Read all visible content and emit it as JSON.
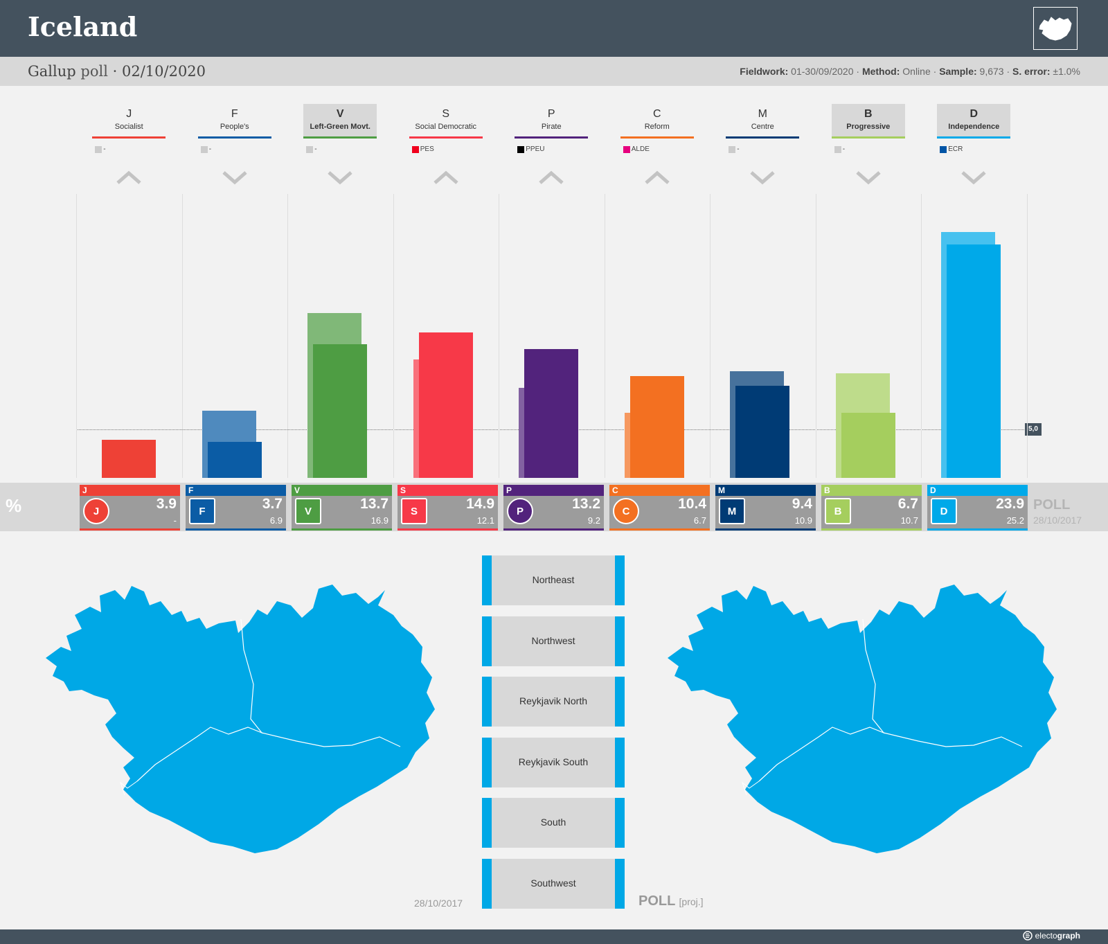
{
  "header": {
    "country": "Iceland",
    "pollster": "Gallup",
    "poll_word": "poll",
    "separator": "·",
    "date": "02/10/2020",
    "fieldwork_label": "Fieldwork:",
    "fieldwork_value": "01-30/09/2020",
    "method_label": "Method:",
    "method_value": "Online",
    "sample_label": "Sample:",
    "sample_value": "9,673",
    "error_label": "S. error:",
    "error_value": "±1.0%",
    "dot": "·"
  },
  "strip": {
    "percent_symbol": "%",
    "poll_label": "POLL",
    "previous_date": "28/10/2017"
  },
  "chart_data": {
    "type": "bar",
    "title": "Iceland — Gallup poll 02/10/2020",
    "categories": [
      "J",
      "F",
      "V",
      "S",
      "P",
      "C",
      "M",
      "B",
      "D"
    ],
    "series": [
      {
        "name": "Election 28/10/2017",
        "values": [
          null,
          6.9,
          16.9,
          12.1,
          9.2,
          6.7,
          10.9,
          10.7,
          25.2
        ]
      },
      {
        "name": "Poll 02/10/2020",
        "values": [
          3.9,
          3.7,
          13.7,
          14.9,
          13.2,
          10.4,
          9.4,
          6.7,
          23.9
        ]
      }
    ],
    "threshold": 5.0,
    "threshold_label": "5,0",
    "ylim": [
      0,
      26
    ]
  },
  "parties": [
    {
      "letter": "J",
      "name": "Socialist",
      "color": "#ee4136",
      "eu": "-",
      "eu_color": "#cccccc",
      "trend": "up",
      "highlight": false,
      "value": "3.9",
      "prev": "-",
      "logo": "socialist-star-icon"
    },
    {
      "letter": "F",
      "name": "People's",
      "color": "#0b5ca5",
      "eu": "-",
      "eu_color": "#cccccc",
      "trend": "down",
      "highlight": false,
      "value": "3.7",
      "prev": "6.9",
      "logo": "people-bird-icon"
    },
    {
      "letter": "V",
      "name": "Left-Green Movt.",
      "color": "#4e9d43",
      "eu": "-",
      "eu_color": "#cccccc",
      "trend": "down",
      "highlight": true,
      "value": "13.7",
      "prev": "16.9",
      "logo": "left-green-v-icon"
    },
    {
      "letter": "S",
      "name": "Social Democratic",
      "color": "#f73948",
      "eu": "PES",
      "eu_color": "#f0001c",
      "trend": "up",
      "highlight": false,
      "value": "14.9",
      "prev": "12.1",
      "logo": "xs-icon"
    },
    {
      "letter": "P",
      "name": "Pirate",
      "color": "#52237c",
      "eu": "PPEU",
      "eu_color": "#000000",
      "trend": "up",
      "highlight": false,
      "value": "13.2",
      "prev": "9.2",
      "logo": "pirate-flag-icon"
    },
    {
      "letter": "C",
      "name": "Reform",
      "color": "#f37021",
      "eu": "ALDE",
      "eu_color": "#e6007e",
      "trend": "up",
      "highlight": false,
      "value": "10.4",
      "prev": "6.7",
      "logo": "reform-c-icon"
    },
    {
      "letter": "M",
      "name": "Centre",
      "color": "#003b75",
      "eu": "-",
      "eu_color": "#cccccc",
      "trend": "down",
      "highlight": false,
      "value": "9.4",
      "prev": "10.9",
      "logo": "centre-horse-icon"
    },
    {
      "letter": "B",
      "name": "Progressive",
      "color": "#a5ce5e",
      "eu": "-",
      "eu_color": "#cccccc",
      "trend": "down",
      "highlight": true,
      "value": "6.7",
      "prev": "10.7",
      "logo": "progressive-book-icon"
    },
    {
      "letter": "D",
      "name": "Independence",
      "color": "#00a9e9",
      "eu": "ECR",
      "eu_color": "#0054a5",
      "trend": "down",
      "highlight": true,
      "value": "23.9",
      "prev": "25.2",
      "logo": "independence-d-icon"
    }
  ],
  "regions": [
    "Northeast",
    "Northwest",
    "Reykjavik North",
    "Reykjavik South",
    "South",
    "Southwest"
  ],
  "maps": {
    "left_date": "28/10/2017",
    "right_label": "POLL",
    "right_sub": "[proj.]",
    "fill_color": "#00a8e6"
  },
  "footer": {
    "brand_light": "electo",
    "brand_bold": "graph"
  }
}
